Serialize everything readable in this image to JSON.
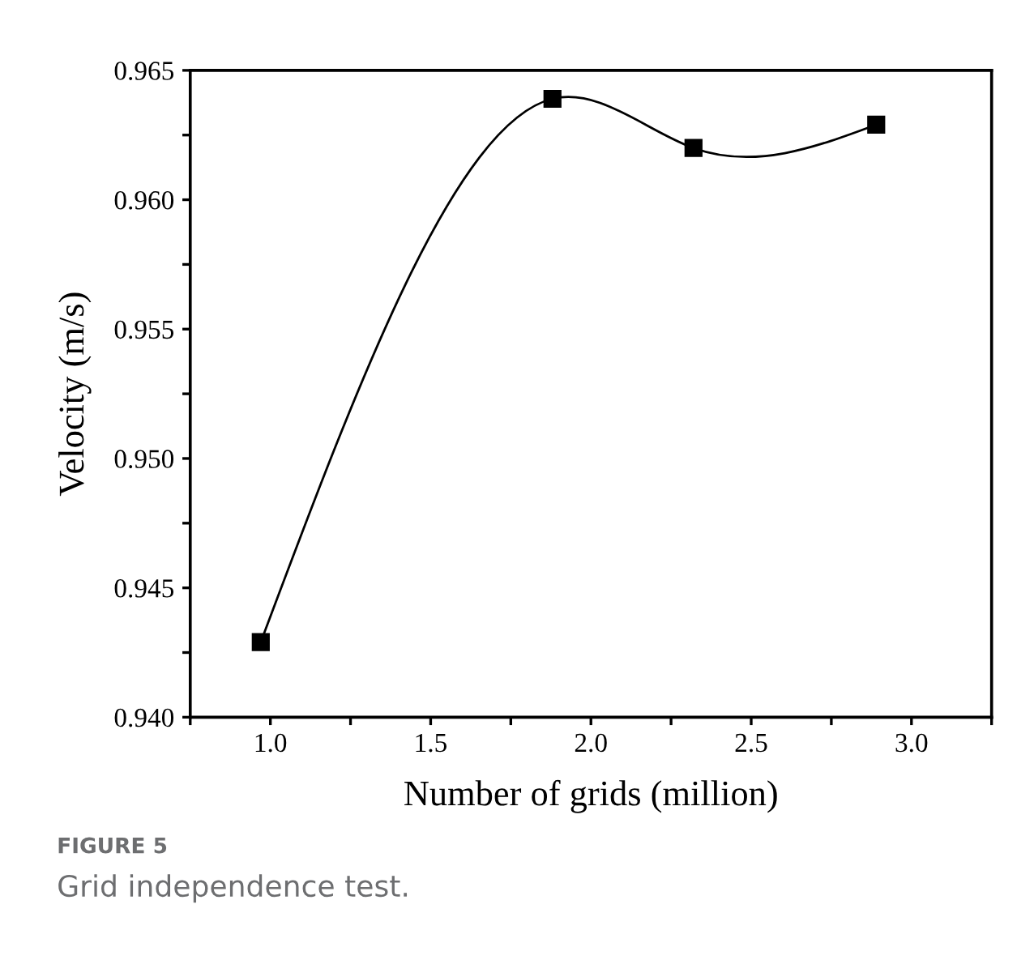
{
  "chart_data": {
    "type": "line",
    "xlabel": "Number of grids (million)",
    "ylabel": "Velocity (m/s)",
    "x": [
      0.97,
      1.88,
      2.32,
      2.89
    ],
    "series": [
      {
        "color": "#000000",
        "values": [
          0.9429,
          0.9639,
          0.962,
          0.9629
        ]
      }
    ],
    "xlim": [
      0.75,
      3.25
    ],
    "xticks": [
      {
        "value": 0.75,
        "label": null
      },
      {
        "value": 1.0,
        "label": "1.0"
      },
      {
        "value": 1.25,
        "label": null
      },
      {
        "value": 1.5,
        "label": "1.5"
      },
      {
        "value": 1.75,
        "label": null
      },
      {
        "value": 2.0,
        "label": "2.0"
      },
      {
        "value": 2.25,
        "label": null
      },
      {
        "value": 2.5,
        "label": "2.5"
      },
      {
        "value": 2.75,
        "label": null
      },
      {
        "value": 3.0,
        "label": "3.0"
      },
      {
        "value": 3.25,
        "label": null
      }
    ],
    "ylim": [
      0.94,
      0.965
    ],
    "yticks": [
      {
        "value": 0.94,
        "label": "0.940"
      },
      {
        "value": 0.9425,
        "label": null
      },
      {
        "value": 0.945,
        "label": "0.945"
      },
      {
        "value": 0.9475,
        "label": null
      },
      {
        "value": 0.95,
        "label": "0.950"
      },
      {
        "value": 0.9525,
        "label": null
      },
      {
        "value": 0.955,
        "label": "0.955"
      },
      {
        "value": 0.9575,
        "label": null
      },
      {
        "value": 0.96,
        "label": "0.960"
      },
      {
        "value": 0.9625,
        "label": null
      },
      {
        "value": 0.965,
        "label": "0.965"
      }
    ],
    "marker": "square",
    "line_style": "solid",
    "grid": false,
    "legend": false,
    "annotations": [
      "FIGURE 5",
      "Grid independence test."
    ]
  }
}
